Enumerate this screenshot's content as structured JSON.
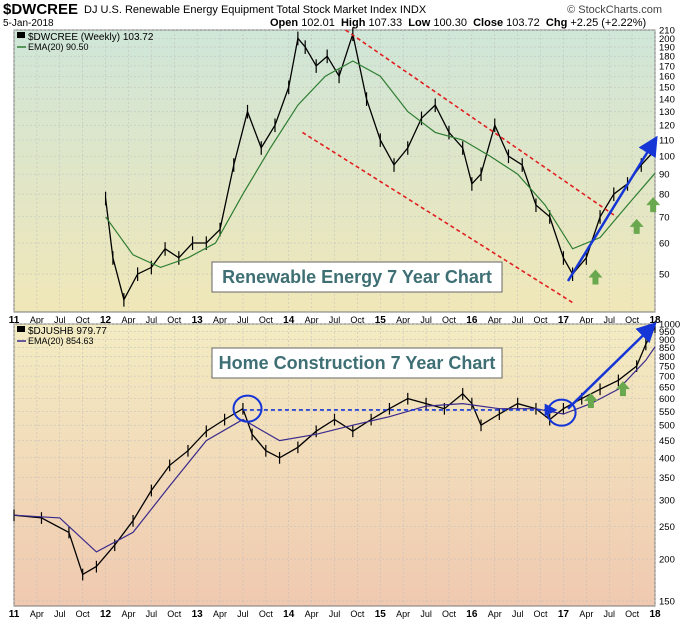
{
  "header": {
    "symbol": "$DWCREE",
    "description": "DJ U.S. Renewable Energy Equipment Total Stock Market Index INDX",
    "date": "5-Jan-2018",
    "open_label": "Open",
    "open": "102.01",
    "high_label": "High",
    "high": "107.33",
    "low_label": "Low",
    "low": "100.30",
    "close_label": "Close",
    "close": "103.72",
    "chg_label": "Chg",
    "chg": "+2.25 (+2.22%)",
    "credit": "© StockCharts.com"
  },
  "colors": {
    "price": "#000000",
    "ema": "#2e7d32",
    "ema_bottom": "#3a2a8c",
    "channel": "#e02020",
    "arrow": "#1535d6",
    "green_arrow": "#6aa84f",
    "top_bg_start": "#cfe6d8",
    "top_bg_end": "#f0e7b8",
    "bottom_bg_start": "#f3ecc2",
    "bottom_bg_end": "#f0c9b0"
  },
  "chart_data": [
    {
      "type": "line",
      "title": "Renewable Energy 7 Year Chart",
      "scale": "log",
      "ylim": [
        40,
        210
      ],
      "y_ticks": [
        50,
        60,
        70,
        80,
        90,
        100,
        110,
        120,
        130,
        140,
        150,
        160,
        170,
        180,
        190,
        200,
        210
      ],
      "legend": [
        {
          "label": "$DWCREE (Weekly) 103.72",
          "icon": "price-bars-icon"
        },
        {
          "label": "EMA(20) 90.50",
          "icon": "ema-line-icon"
        }
      ],
      "series": [
        {
          "name": "$DWCREE (Weekly)",
          "x": [
            2012.0,
            2012.08,
            2012.2,
            2012.35,
            2012.5,
            2012.65,
            2012.8,
            2012.95,
            2013.1,
            2013.25,
            2013.4,
            2013.55,
            2013.7,
            2013.85,
            2014.0,
            2014.1,
            2014.18,
            2014.3,
            2014.42,
            2014.55,
            2014.7,
            2014.85,
            2015.0,
            2015.15,
            2015.3,
            2015.45,
            2015.6,
            2015.75,
            2015.9,
            2016.0,
            2016.1,
            2016.25,
            2016.4,
            2016.55,
            2016.7,
            2016.85,
            2017.0,
            2017.1,
            2017.25,
            2017.4,
            2017.55,
            2017.7,
            2017.85,
            2018.0
          ],
          "values": [
            78,
            55,
            43,
            50,
            52,
            58,
            55,
            60,
            60,
            65,
            95,
            130,
            105,
            120,
            150,
            200,
            190,
            170,
            180,
            160,
            205,
            140,
            110,
            95,
            105,
            125,
            135,
            115,
            105,
            85,
            90,
            120,
            100,
            95,
            75,
            70,
            55,
            50,
            55,
            70,
            80,
            85,
            95,
            103.72
          ]
        },
        {
          "name": "EMA(20)",
          "x": [
            2012.0,
            2012.3,
            2012.6,
            2012.9,
            2013.2,
            2013.5,
            2013.8,
            2014.1,
            2014.4,
            2014.7,
            2015.0,
            2015.3,
            2015.6,
            2015.9,
            2016.2,
            2016.5,
            2016.8,
            2017.1,
            2017.4,
            2017.7,
            2018.0
          ],
          "values": [
            70,
            56,
            52,
            55,
            60,
            80,
            105,
            135,
            160,
            175,
            160,
            130,
            115,
            110,
            100,
            90,
            75,
            58,
            62,
            75,
            90.5
          ]
        }
      ],
      "annotations": {
        "channel_upper": {
          "x": [
            2014.62,
            2017.58
          ],
          "y": [
            210,
            70
          ]
        },
        "channel_lower": {
          "x": [
            2014.15,
            2017.12
          ],
          "y": [
            115,
            42
          ]
        },
        "breakout_arrow": {
          "x": [
            2017.05,
            2018.0
          ],
          "y": [
            48,
            110
          ]
        },
        "green_up_arrows": [
          {
            "x": 2017.35,
            "y": 49
          },
          {
            "x": 2017.8,
            "y": 66
          },
          {
            "x": 2017.98,
            "y": 75
          }
        ]
      },
      "x_ticks": [
        "11",
        "Apr",
        "Jul",
        "Oct",
        "12",
        "Apr",
        "Jul",
        "Oct",
        "13",
        "Apr",
        "Jul",
        "Oct",
        "14",
        "Apr",
        "Jul",
        "Oct",
        "15",
        "Apr",
        "Jul",
        "Oct",
        "16",
        "Apr",
        "Jul",
        "Oct",
        "17",
        "Apr",
        "Jul",
        "Oct",
        "18"
      ]
    },
    {
      "type": "line",
      "title": "Home Construction 7 Year Chart",
      "scale": "log",
      "ylim": [
        145,
        1000
      ],
      "y_ticks": [
        150,
        200,
        250,
        300,
        350,
        400,
        450,
        500,
        550,
        600,
        650,
        700,
        750,
        800,
        850,
        900,
        950,
        1000
      ],
      "legend": [
        {
          "label": "$DJUSHB 979.77",
          "icon": "price-bars-icon"
        },
        {
          "label": "EMA(20) 854.63",
          "icon": "ema-line-icon"
        }
      ],
      "series": [
        {
          "name": "$DJUSHB",
          "x": [
            2011.0,
            2011.3,
            2011.6,
            2011.75,
            2011.9,
            2012.1,
            2012.3,
            2012.5,
            2012.7,
            2012.9,
            2013.1,
            2013.3,
            2013.5,
            2013.6,
            2013.75,
            2013.9,
            2014.1,
            2014.3,
            2014.5,
            2014.7,
            2014.9,
            2015.1,
            2015.3,
            2015.5,
            2015.7,
            2015.9,
            2016.0,
            2016.1,
            2016.3,
            2016.5,
            2016.7,
            2016.85,
            2017.0,
            2017.2,
            2017.4,
            2017.6,
            2017.8,
            2017.9,
            2018.0
          ],
          "values": [
            270,
            265,
            240,
            180,
            190,
            220,
            260,
            320,
            380,
            420,
            480,
            520,
            560,
            470,
            420,
            400,
            430,
            480,
            520,
            480,
            520,
            560,
            600,
            580,
            560,
            620,
            580,
            500,
            540,
            580,
            560,
            520,
            560,
            600,
            640,
            680,
            750,
            870,
            979.77
          ]
        },
        {
          "name": "EMA(20)",
          "x": [
            2011.0,
            2011.5,
            2011.9,
            2012.3,
            2012.7,
            2013.1,
            2013.5,
            2013.9,
            2014.3,
            2014.7,
            2015.1,
            2015.5,
            2015.9,
            2016.3,
            2016.7,
            2017.0,
            2017.3,
            2017.6,
            2017.9,
            2018.0
          ],
          "values": [
            270,
            265,
            210,
            240,
            330,
            450,
            520,
            450,
            470,
            500,
            530,
            570,
            580,
            560,
            560,
            540,
            580,
            640,
            780,
            854.63
          ]
        }
      ],
      "annotations": {
        "resistance_line": {
          "x": [
            2013.5,
            2016.9
          ],
          "y": [
            555,
            555
          ]
        },
        "circles": [
          {
            "x": 2013.55,
            "y": 560
          },
          {
            "x": 2016.98,
            "y": 545
          }
        ],
        "breakout_arrow": {
          "x": [
            2017.05,
            2017.98
          ],
          "y": [
            560,
            990
          ]
        },
        "green_up_arrows": [
          {
            "x": 2017.3,
            "y": 590
          },
          {
            "x": 2017.65,
            "y": 640
          }
        ]
      },
      "x_ticks": [
        "11",
        "Apr",
        "Jul",
        "Oct",
        "12",
        "Apr",
        "Jul",
        "Oct",
        "13",
        "Apr",
        "Jul",
        "Oct",
        "14",
        "Apr",
        "Jul",
        "Oct",
        "15",
        "Apr",
        "Jul",
        "Oct",
        "16",
        "Apr",
        "Jul",
        "Oct",
        "17",
        "Apr",
        "Jul",
        "Oct",
        "18"
      ]
    }
  ]
}
